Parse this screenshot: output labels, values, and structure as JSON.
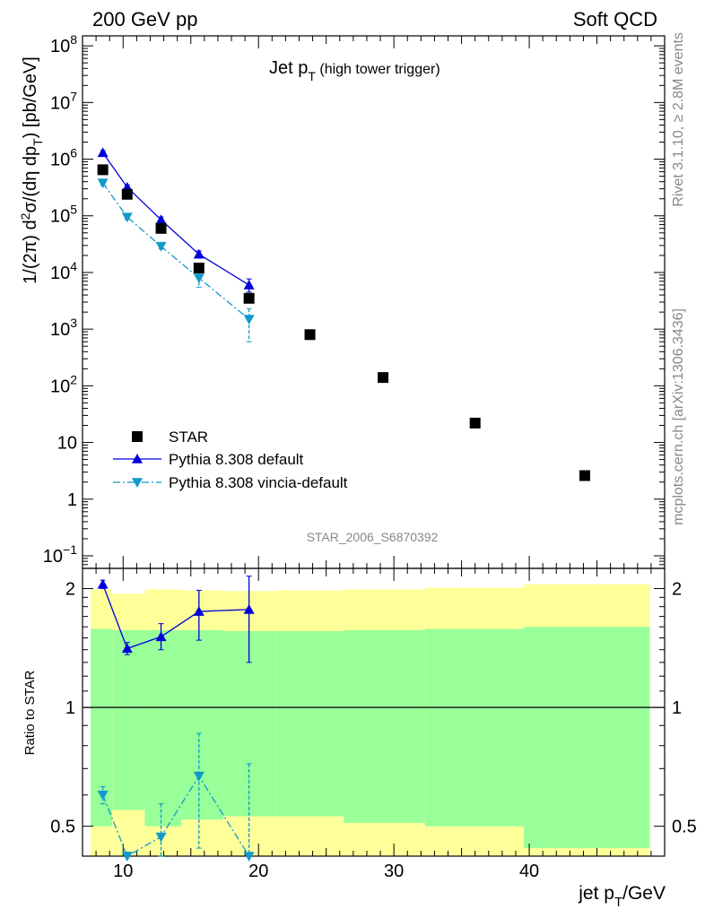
{
  "header": {
    "left": "200 GeV pp",
    "right": "Soft QCD",
    "side_top": "Rivet 3.1.10, ≥ 2.8M events",
    "side_bottom": "mcplots.cern.ch [arXiv:1306.3436]"
  },
  "title": {
    "main": "Jet p",
    "sub": "T",
    "suffix": " (high tower trigger)"
  },
  "analysis_tag": "STAR_2006_S6870392",
  "main_ylabel": "1/(2π) d²σ/(dη dp_T) [pb/GeV]",
  "ratio_ylabel": "Ratio to STAR",
  "xlabel": "jet p_T/GeV",
  "main_yticks": [
    {
      "v": 0.1,
      "base": "10",
      "exp": "−1"
    },
    {
      "v": 1,
      "base": "1",
      "exp": ""
    },
    {
      "v": 10,
      "base": "10",
      "exp": ""
    },
    {
      "v": 100,
      "base": "10",
      "exp": "2"
    },
    {
      "v": 1000,
      "base": "10",
      "exp": "3"
    },
    {
      "v": 10000,
      "base": "10",
      "exp": "4"
    },
    {
      "v": 100000,
      "base": "10",
      "exp": "5"
    },
    {
      "v": 1000000,
      "base": "10",
      "exp": "6"
    },
    {
      "v": 10000000,
      "base": "10",
      "exp": "7"
    },
    {
      "v": 100000000,
      "base": "10",
      "exp": "8"
    }
  ],
  "ratio_yticks": [
    {
      "v": 0.5,
      "label": "0.5"
    },
    {
      "v": 1,
      "label": "1"
    },
    {
      "v": 2,
      "label": "2"
    }
  ],
  "xticks": [
    10,
    20,
    30,
    40
  ],
  "legend": [
    {
      "key": "star",
      "label": "STAR"
    },
    {
      "key": "pythia_default",
      "label": "Pythia 8.308 default"
    },
    {
      "key": "pythia_vincia",
      "label": "Pythia 8.308 vincia-default"
    }
  ],
  "chart_data": {
    "type": "scatter",
    "xlim": [
      7,
      50
    ],
    "main_ylim": [
      0.06,
      150000000
    ],
    "main_yscale": "log",
    "ratio_ylim": [
      0.42,
      2.25
    ],
    "ratio_yscale": "log",
    "colors": {
      "star": "#000000",
      "pythia_default": "#0000dd",
      "pythia_vincia": "#1199cc",
      "band_inner": "#99ff99",
      "band_outer": "#ffff99"
    },
    "star": {
      "bins": [
        [
          7.6,
          9.2
        ],
        [
          9.2,
          11.6
        ],
        [
          11.6,
          14.3
        ],
        [
          14.3,
          17.4
        ],
        [
          17.4,
          21.3
        ],
        [
          21.3,
          26.3
        ],
        [
          26.3,
          32.3
        ],
        [
          32.3,
          39.6
        ],
        [
          39.6,
          48.9
        ]
      ],
      "x": [
        8.5,
        10.3,
        12.8,
        15.6,
        19.3,
        23.8,
        29.2,
        36.0,
        44.1
      ],
      "y": [
        650000,
        240000,
        60000,
        12000,
        3500,
        800,
        140,
        22,
        2.6
      ],
      "band_inner": [
        [
          0.5,
          1.58
        ],
        [
          0.55,
          1.57
        ],
        [
          0.5,
          1.57
        ],
        [
          0.52,
          1.57
        ],
        [
          0.53,
          1.56
        ],
        [
          0.53,
          1.56
        ],
        [
          0.51,
          1.57
        ],
        [
          0.5,
          1.58
        ],
        [
          0.44,
          1.6
        ]
      ],
      "band_outer": [
        [
          0.34,
          1.99
        ],
        [
          0.34,
          1.94
        ],
        [
          0.34,
          1.99
        ],
        [
          0.34,
          1.98
        ],
        [
          0.34,
          1.97
        ],
        [
          0.34,
          1.98
        ],
        [
          0.34,
          1.99
        ],
        [
          0.34,
          2.01
        ],
        [
          0.34,
          2.05
        ]
      ]
    },
    "series": [
      {
        "name": "Pythia 8.308 default",
        "key": "pythia_default",
        "x": [
          8.5,
          10.3,
          12.8,
          15.6,
          19.3
        ],
        "y": [
          1300000,
          320000,
          85000,
          21000,
          6000
        ],
        "yerr_low": [
          120000,
          30000,
          10000,
          3000,
          1500
        ],
        "yerr_high": [
          120000,
          30000,
          10000,
          3000,
          1700
        ],
        "ratio": [
          2.05,
          1.41,
          1.51,
          1.75,
          1.77
        ],
        "ratio_lo": [
          2.0,
          1.36,
          1.4,
          1.48,
          1.3
        ],
        "ratio_hi": [
          2.1,
          1.46,
          1.63,
          1.98,
          2.15
        ]
      },
      {
        "name": "Pythia 8.308 vincia-default",
        "key": "pythia_vincia",
        "x": [
          8.5,
          10.3,
          12.8,
          15.6,
          19.3
        ],
        "y": [
          380000,
          95000,
          29000,
          8000,
          1500
        ],
        "yerr_low": [
          35000,
          9000,
          3000,
          2500,
          900
        ],
        "yerr_high": [
          35000,
          9000,
          3000,
          2500,
          800
        ],
        "ratio": [
          0.6,
          0.4,
          0.47,
          0.67,
          0.39
        ],
        "ratio_lo": [
          0.57,
          0.37,
          0.41,
          0.44,
          0.35
        ],
        "ratio_hi": [
          0.63,
          0.43,
          0.57,
          0.86,
          0.72
        ]
      }
    ]
  }
}
